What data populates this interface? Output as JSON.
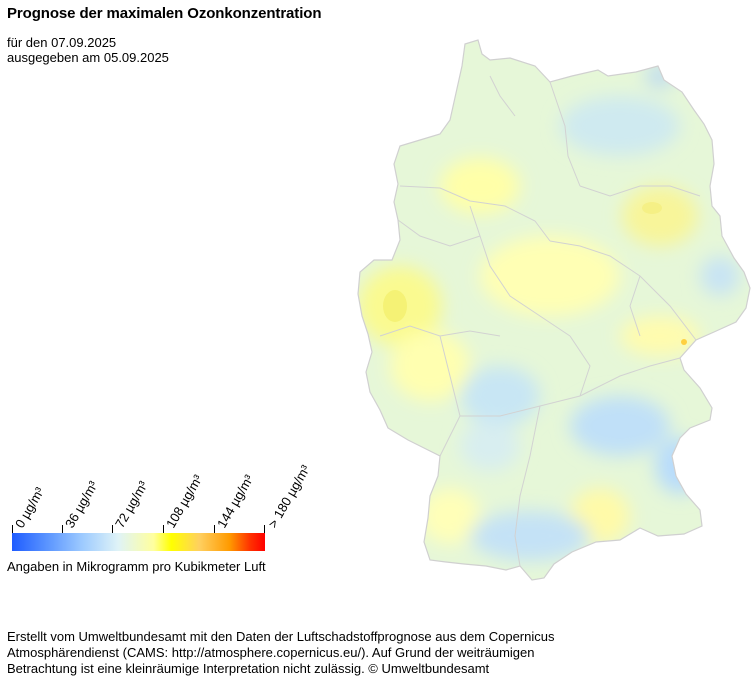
{
  "title": "Prognose der maximalen Ozonkonzentration",
  "subtitle": {
    "date_line": "für den 07.09.2025",
    "issued_line": "ausgegeben am 05.09.2025"
  },
  "legend": {
    "ticks": [
      "0  µg/m³",
      "36  µg/m³",
      "72  µg/m³",
      "108  µg/m³",
      "144  µg/m³",
      "> 180  µg/m³"
    ],
    "note": "Angaben in Mikrogramm pro Kubikmeter Luft",
    "colors": [
      "#1f5cff",
      "#9ecbff",
      "#dff3f7",
      "#ffff9e",
      "#ffff00",
      "#ff9a00",
      "#ff0000"
    ]
  },
  "footer": {
    "line1": "Erstellt vom Umweltbundesamt mit den Daten der Luftschadstoffprognose aus dem Copernicus",
    "line2": "Atmosphärendienst (CAMS: http://atmosphere.copernicus.eu/). Auf Grund der weiträumigen",
    "line3": "Betrachtung ist eine kleinräumige Interpretation nicht zulässig. © Umweltbundesamt"
  },
  "map": {
    "region": "germany",
    "colors": {
      "base": "#e6f7d8",
      "yellow": "#ffff9e",
      "strong_yellow": "#f8f060",
      "blue": "#b6dcff",
      "border": "#d2d2d2"
    }
  }
}
